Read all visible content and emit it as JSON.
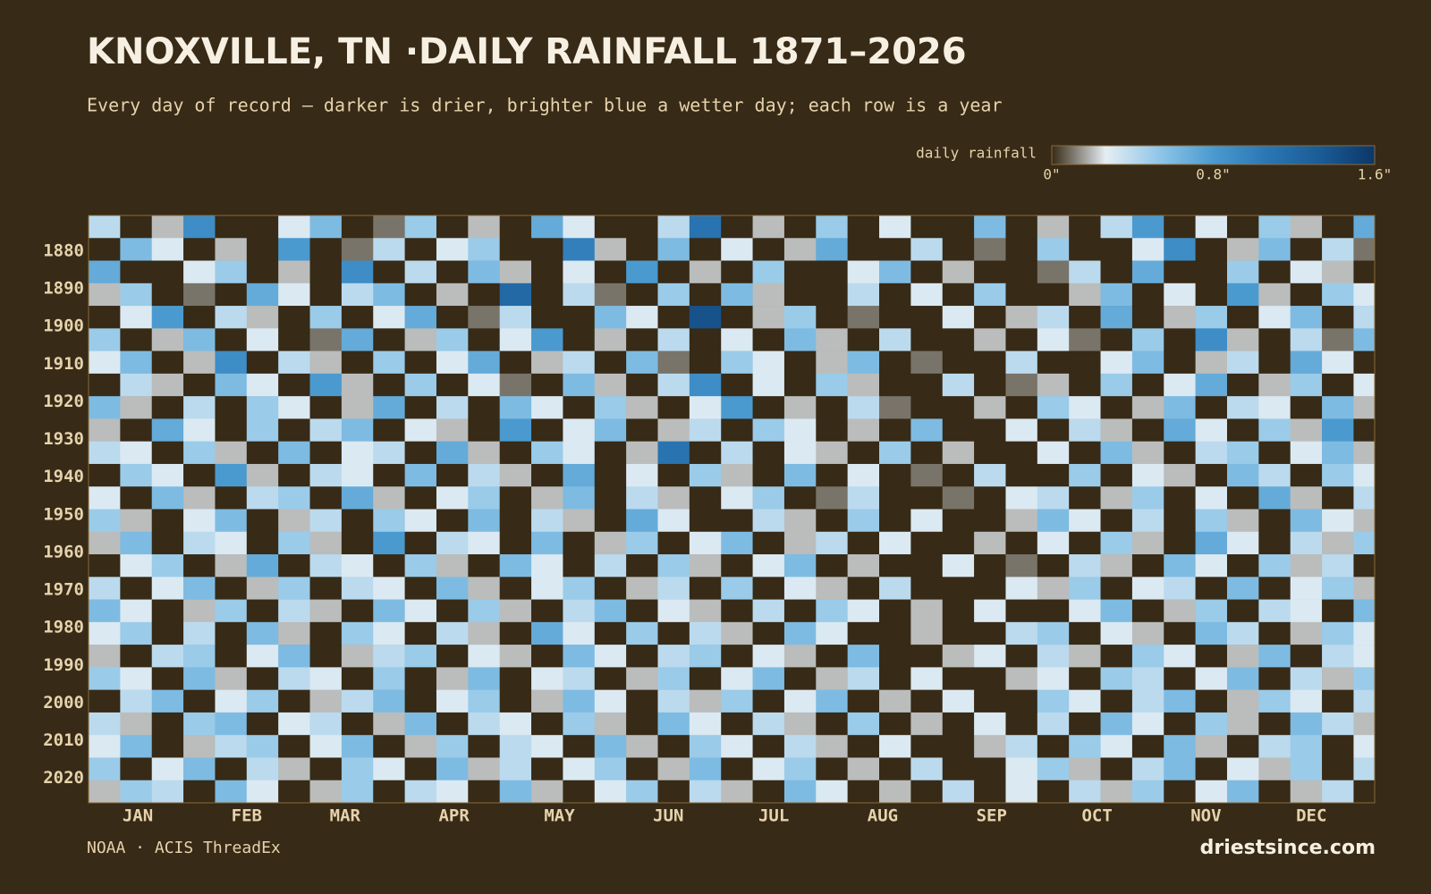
{
  "chart_data": {
    "type": "heatmap",
    "title": "KNOXVILLE, TN ·DAILY RAINFALL 1871–2026",
    "subtitle": "Every day of record — darker is drier, brighter blue a wetter day; each row is a year",
    "colorbar_label": "daily rainfall",
    "clim": [
      0,
      1.6
    ],
    "cticks": [
      {
        "value": 0,
        "label": "0\""
      },
      {
        "value": 0.8,
        "label": "0.8\""
      },
      {
        "value": 1.6,
        "label": "1.6\""
      }
    ],
    "colors": [
      "#372a16",
      "#e6eef3",
      "#8fc6e8",
      "#4a9ad0",
      "#2a76b4",
      "#1a5b96",
      "#0c3768"
    ],
    "xlim": [
      1,
      367
    ],
    "ylim": [
      1871,
      2027
    ],
    "xticks": [
      {
        "value": 15,
        "label": "JAN"
      },
      {
        "value": 46,
        "label": "FEB"
      },
      {
        "value": 74,
        "label": "MAR"
      },
      {
        "value": 105,
        "label": "APR"
      },
      {
        "value": 135,
        "label": "MAY"
      },
      {
        "value": 166,
        "label": "JUN"
      },
      {
        "value": 196,
        "label": "JUL"
      },
      {
        "value": 227,
        "label": "AUG"
      },
      {
        "value": 258,
        "label": "SEP"
      },
      {
        "value": 288,
        "label": "OCT"
      },
      {
        "value": 319,
        "label": "NOV"
      },
      {
        "value": 349,
        "label": "DEC"
      }
    ],
    "yticks": [
      1880,
      1890,
      1900,
      1910,
      1920,
      1930,
      1940,
      1950,
      1960,
      1970,
      1980,
      1990,
      2000,
      2010,
      2020
    ],
    "x": [
      1,
      10,
      19,
      28,
      37,
      46,
      55,
      64,
      73,
      82,
      91,
      100,
      109,
      118,
      127,
      136,
      145,
      154,
      163,
      172,
      181,
      190,
      199,
      208,
      217,
      226,
      235,
      244,
      253,
      262,
      271,
      280,
      289,
      298,
      307,
      316,
      325,
      334,
      343,
      352,
      361
    ],
    "y": [
      1871,
      1877,
      1883,
      1889,
      1895,
      1901,
      1907,
      1913,
      1919,
      1925,
      1931,
      1937,
      1943,
      1949,
      1955,
      1961,
      1967,
      1973,
      1979,
      1985,
      1991,
      1997,
      2003,
      2009,
      2015,
      2021
    ],
    "values": [
      [
        0.4,
        0,
        0.2,
        0.9,
        0,
        0,
        0.3,
        0.6,
        0,
        0.1,
        0.5,
        0,
        0.2,
        0,
        0.7,
        0.3,
        0,
        0,
        0.4,
        1.1,
        0,
        0.2,
        0,
        0.5,
        0,
        0.3,
        0,
        0,
        0.6,
        0,
        0.2,
        0,
        0.4,
        0.8,
        0,
        0.3,
        0,
        0.5,
        0.2,
        0,
        0.7
      ],
      [
        0,
        0.6,
        0.3,
        0,
        0.2,
        0,
        0.8,
        0,
        0.1,
        0.4,
        0,
        0.3,
        0.5,
        0,
        0,
        1.0,
        0.2,
        0,
        0.6,
        0,
        0.3,
        0,
        0.2,
        0.7,
        0,
        0,
        0.4,
        0,
        0.1,
        0,
        0.5,
        0,
        0,
        0.3,
        0.9,
        0,
        0.2,
        0.6,
        0,
        0.4,
        0.1
      ],
      [
        0.7,
        0,
        0,
        0.3,
        0.5,
        0,
        0.2,
        0,
        0.9,
        0,
        0.4,
        0,
        0.6,
        0.2,
        0,
        0.3,
        0,
        0.8,
        0,
        0.2,
        0,
        0.5,
        0,
        0,
        0.3,
        0.6,
        0,
        0.2,
        0,
        0,
        0.1,
        0.4,
        0,
        0.7,
        0,
        0,
        0.5,
        0,
        0.3,
        0.2,
        0
      ],
      [
        0.2,
        0.5,
        0,
        0.1,
        0,
        0.7,
        0.3,
        0,
        0.4,
        0.6,
        0,
        0.2,
        0,
        1.2,
        0,
        0.4,
        0.1,
        0,
        0.5,
        0,
        0.6,
        0.2,
        0,
        0,
        0.4,
        0,
        0.3,
        0,
        0.5,
        0,
        0,
        0.2,
        0.6,
        0,
        0.3,
        0,
        0.8,
        0.2,
        0,
        0.5,
        0.3
      ],
      [
        0,
        0.3,
        0.8,
        0,
        0.4,
        0.2,
        0,
        0.5,
        0,
        0.3,
        0.7,
        0,
        0.1,
        0.4,
        0,
        0,
        0.6,
        0.3,
        0,
        1.4,
        0,
        0.2,
        0.5,
        0,
        0.1,
        0,
        0,
        0.3,
        0,
        0.2,
        0.4,
        0,
        0.7,
        0,
        0.2,
        0.5,
        0,
        0.3,
        0.6,
        0,
        0.4
      ],
      [
        0.5,
        0,
        0.2,
        0.6,
        0,
        0.3,
        0,
        0.1,
        0.7,
        0,
        0.2,
        0.5,
        0,
        0.3,
        0.8,
        0,
        0.2,
        0,
        0.4,
        0,
        0.3,
        0,
        0.6,
        0.2,
        0,
        0.4,
        0,
        0,
        0.2,
        0,
        0.3,
        0.1,
        0,
        0.5,
        0,
        0.9,
        0.2,
        0,
        0.4,
        0.1,
        0.6
      ],
      [
        0.3,
        0.6,
        0,
        0.2,
        0.9,
        0,
        0.4,
        0.2,
        0,
        0.5,
        0,
        0.3,
        0.7,
        0,
        0.2,
        0.4,
        0,
        0.6,
        0.1,
        0,
        0.5,
        0.3,
        0,
        0.2,
        0.6,
        0,
        0.1,
        0,
        0,
        0.4,
        0,
        0,
        0.3,
        0.6,
        0,
        0.2,
        0.4,
        0,
        0.7,
        0.3,
        0
      ],
      [
        0,
        0.4,
        0.2,
        0,
        0.6,
        0.3,
        0,
        0.8,
        0.2,
        0,
        0.5,
        0,
        0.3,
        0.1,
        0,
        0.6,
        0.2,
        0,
        0.4,
        0.9,
        0,
        0.3,
        0,
        0.5,
        0.2,
        0,
        0,
        0.4,
        0,
        0.1,
        0.2,
        0,
        0.5,
        0,
        0.3,
        0.7,
        0,
        0.2,
        0.5,
        0,
        0.3
      ],
      [
        0.6,
        0.2,
        0,
        0.4,
        0,
        0.5,
        0.3,
        0,
        0.2,
        0.7,
        0,
        0.4,
        0,
        0.6,
        0.3,
        0,
        0.5,
        0.2,
        0,
        0.3,
        0.8,
        0,
        0.2,
        0,
        0.4,
        0.1,
        0,
        0,
        0.2,
        0,
        0.5,
        0.3,
        0,
        0.2,
        0.6,
        0,
        0.4,
        0.3,
        0,
        0.6,
        0.2
      ],
      [
        0.2,
        0,
        0.7,
        0.3,
        0,
        0.5,
        0,
        0.4,
        0.6,
        0,
        0.3,
        0.2,
        0,
        0.8,
        0,
        0.3,
        0.6,
        0,
        0.2,
        0.4,
        0,
        0.5,
        0.3,
        0,
        0.2,
        0,
        0.6,
        0,
        0,
        0.3,
        0,
        0.4,
        0.2,
        0,
        0.7,
        0.3,
        0,
        0.5,
        0.2,
        0.8,
        0
      ],
      [
        0.4,
        0.3,
        0,
        0.5,
        0.2,
        0,
        0.6,
        0,
        0.3,
        0.4,
        0,
        0.7,
        0.2,
        0,
        0.5,
        0.3,
        0,
        0.2,
        1.1,
        0,
        0.4,
        0,
        0.3,
        0.2,
        0,
        0.5,
        0,
        0.2,
        0,
        0,
        0.3,
        0,
        0.6,
        0.2,
        0,
        0.4,
        0.5,
        0,
        0.3,
        0.6,
        0.2
      ],
      [
        0,
        0.5,
        0.3,
        0,
        0.8,
        0.2,
        0,
        0.4,
        0.3,
        0,
        0.6,
        0,
        0.4,
        0.2,
        0,
        0.7,
        0,
        0.3,
        0,
        0.5,
        0.2,
        0,
        0.6,
        0,
        0.3,
        0,
        0.1,
        0,
        0.4,
        0,
        0,
        0.5,
        0,
        0.3,
        0.2,
        0,
        0.6,
        0.4,
        0,
        0.5,
        0.3
      ],
      [
        0.3,
        0,
        0.6,
        0.2,
        0,
        0.4,
        0.5,
        0,
        0.7,
        0.2,
        0,
        0.3,
        0.5,
        0,
        0.2,
        0.6,
        0,
        0.4,
        0.2,
        0,
        0.3,
        0.5,
        0,
        0.1,
        0.4,
        0,
        0,
        0.1,
        0,
        0.3,
        0.4,
        0,
        0.2,
        0.5,
        0,
        0.3,
        0,
        0.7,
        0.2,
        0,
        0.4
      ],
      [
        0.5,
        0.2,
        0,
        0.3,
        0.6,
        0,
        0.2,
        0.4,
        0,
        0.5,
        0.3,
        0,
        0.6,
        0,
        0.4,
        0.2,
        0,
        0.7,
        0.3,
        0,
        0,
        0.4,
        0.2,
        0,
        0.5,
        0,
        0.3,
        0,
        0,
        0.2,
        0.6,
        0.3,
        0,
        0.4,
        0,
        0.5,
        0.2,
        0,
        0.6,
        0.3,
        0.2
      ],
      [
        0.2,
        0.6,
        0,
        0.4,
        0.3,
        0,
        0.5,
        0.2,
        0,
        0.8,
        0,
        0.4,
        0.3,
        0,
        0.6,
        0,
        0.2,
        0.5,
        0,
        0.3,
        0.6,
        0,
        0.2,
        0.4,
        0,
        0.3,
        0,
        0,
        0.2,
        0,
        0.3,
        0,
        0.5,
        0.2,
        0,
        0.7,
        0.3,
        0,
        0.4,
        0.2,
        0.5
      ],
      [
        0,
        0.3,
        0.5,
        0,
        0.2,
        0.7,
        0,
        0.4,
        0.3,
        0,
        0.5,
        0.2,
        0,
        0.6,
        0.3,
        0,
        0.4,
        0,
        0.5,
        0.2,
        0,
        0.3,
        0.6,
        0,
        0.2,
        0,
        0,
        0.3,
        0,
        0.1,
        0,
        0.4,
        0.2,
        0,
        0.6,
        0.3,
        0,
        0.5,
        0.2,
        0.4,
        0
      ],
      [
        0.4,
        0,
        0.3,
        0.6,
        0,
        0.2,
        0.5,
        0,
        0.4,
        0.3,
        0,
        0.6,
        0.2,
        0,
        0.3,
        0.5,
        0,
        0.2,
        0.4,
        0,
        0.5,
        0,
        0.3,
        0.2,
        0,
        0.4,
        0,
        0,
        0,
        0.3,
        0.2,
        0.5,
        0,
        0.3,
        0.4,
        0,
        0.6,
        0,
        0.3,
        0.5,
        0.2
      ],
      [
        0.6,
        0.3,
        0,
        0.2,
        0.5,
        0,
        0.4,
        0.2,
        0,
        0.6,
        0.3,
        0,
        0.5,
        0.2,
        0,
        0.4,
        0.6,
        0,
        0.3,
        0.2,
        0,
        0.4,
        0,
        0.5,
        0.3,
        0,
        0.2,
        0,
        0.3,
        0,
        0,
        0.3,
        0.6,
        0,
        0.2,
        0.5,
        0,
        0.4,
        0.3,
        0,
        0.6
      ],
      [
        0.3,
        0.5,
        0,
        0.4,
        0,
        0.6,
        0.2,
        0,
        0.5,
        0.3,
        0,
        0.4,
        0.2,
        0,
        0.7,
        0.3,
        0,
        0.5,
        0,
        0.4,
        0.2,
        0,
        0.6,
        0.3,
        0,
        0,
        0.2,
        0,
        0,
        0.4,
        0.5,
        0,
        0.3,
        0.2,
        0,
        0.6,
        0.4,
        0,
        0.2,
        0.5,
        0.3
      ],
      [
        0.2,
        0,
        0.4,
        0.5,
        0,
        0.3,
        0.6,
        0,
        0.2,
        0.4,
        0.5,
        0,
        0.3,
        0.2,
        0,
        0.6,
        0.3,
        0,
        0.4,
        0.5,
        0,
        0.3,
        0.2,
        0,
        0.6,
        0,
        0,
        0.2,
        0.3,
        0,
        0.4,
        0.2,
        0,
        0.5,
        0.3,
        0,
        0.2,
        0.6,
        0,
        0.4,
        0.3
      ],
      [
        0.5,
        0.3,
        0,
        0.6,
        0.2,
        0,
        0.4,
        0.3,
        0,
        0.5,
        0,
        0.2,
        0.6,
        0,
        0.3,
        0.4,
        0,
        0.2,
        0.5,
        0,
        0.3,
        0.6,
        0,
        0.2,
        0.4,
        0,
        0.3,
        0,
        0,
        0.2,
        0.3,
        0,
        0.5,
        0.4,
        0,
        0.3,
        0.6,
        0,
        0.4,
        0.2,
        0.5
      ],
      [
        0,
        0.4,
        0.6,
        0,
        0.3,
        0.5,
        0,
        0.2,
        0.4,
        0.6,
        0,
        0.3,
        0.5,
        0,
        0.2,
        0.6,
        0.3,
        0,
        0.4,
        0.2,
        0.5,
        0,
        0.3,
        0.6,
        0,
        0.2,
        0,
        0.3,
        0,
        0,
        0.5,
        0.3,
        0,
        0.4,
        0.6,
        0,
        0.2,
        0.5,
        0.3,
        0,
        0.4
      ],
      [
        0.4,
        0.2,
        0,
        0.5,
        0.6,
        0,
        0.3,
        0.4,
        0,
        0.2,
        0.6,
        0,
        0.4,
        0.3,
        0,
        0.5,
        0.2,
        0,
        0.6,
        0.3,
        0,
        0.4,
        0.2,
        0,
        0.5,
        0,
        0.2,
        0,
        0.3,
        0,
        0.4,
        0,
        0.6,
        0.3,
        0,
        0.5,
        0.2,
        0,
        0.6,
        0.4,
        0.2
      ],
      [
        0.3,
        0.6,
        0,
        0.2,
        0.4,
        0.5,
        0,
        0.3,
        0.6,
        0,
        0.2,
        0.5,
        0,
        0.4,
        0.3,
        0,
        0.6,
        0.2,
        0,
        0.5,
        0.3,
        0,
        0.4,
        0.2,
        0,
        0.3,
        0,
        0,
        0.2,
        0.4,
        0,
        0.5,
        0.3,
        0,
        0.6,
        0.2,
        0,
        0.4,
        0.5,
        0,
        0.3
      ],
      [
        0.5,
        0,
        0.3,
        0.6,
        0,
        0.4,
        0.2,
        0,
        0.5,
        0.3,
        0,
        0.6,
        0.2,
        0.4,
        0,
        0.3,
        0.5,
        0,
        0.2,
        0.6,
        0,
        0.3,
        0.5,
        0,
        0.2,
        0,
        0.4,
        0,
        0,
        0.3,
        0.5,
        0.2,
        0,
        0.4,
        0.6,
        0,
        0.3,
        0.2,
        0.5,
        0,
        0.4
      ],
      [
        0.2,
        0.5,
        0.4,
        0,
        0.6,
        0.3,
        0,
        0.2,
        0.5,
        0,
        0.4,
        0.3,
        0,
        0.6,
        0.2,
        0,
        0.3,
        0.5,
        0,
        0.4,
        0.2,
        0,
        0.6,
        0.3,
        0,
        0.2,
        0,
        0.4,
        0,
        0.3,
        0,
        0.4,
        0.2,
        0.5,
        0,
        0.3,
        0.6,
        0,
        0.2,
        0.4,
        0
      ]
    ],
    "source": "NOAA · ACIS ThreadEx",
    "brand": "driestsince.com"
  }
}
